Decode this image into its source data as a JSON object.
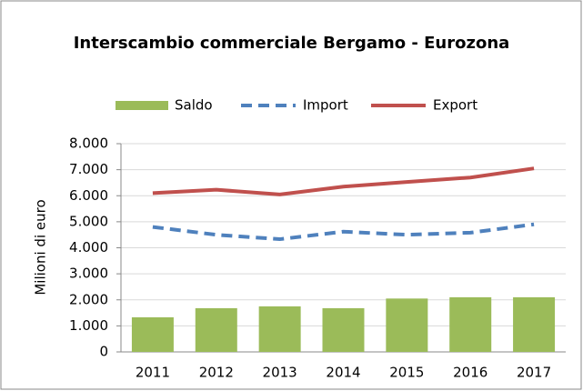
{
  "chart_data": {
    "type": "bar-line",
    "title": "Interscambio commerciale Bergamo - Eurozona",
    "y_axis_label": "Milioni di euro",
    "categories": [
      "2011",
      "2012",
      "2013",
      "2014",
      "2015",
      "2016",
      "2017"
    ],
    "series": [
      {
        "name": "Saldo",
        "type": "bar",
        "color": "#9bbb59",
        "values": [
          1330,
          1680,
          1750,
          1680,
          2050,
          2100,
          2100
        ]
      },
      {
        "name": "Import",
        "type": "line",
        "dashed": true,
        "color": "#4f81bd",
        "values": [
          4800,
          4500,
          4330,
          4620,
          4500,
          4580,
          4900
        ]
      },
      {
        "name": "Export",
        "type": "line",
        "dashed": false,
        "color": "#c0504d",
        "values": [
          6100,
          6230,
          6050,
          6350,
          6530,
          6700,
          7050
        ]
      }
    ],
    "ylim": [
      0,
      8000
    ],
    "yticks": [
      0,
      {
        "value": 1000,
        "label": "1.000"
      },
      {
        "value": 2000,
        "label": "2.000"
      },
      {
        "value": 3000,
        "label": "3.000"
      },
      {
        "value": 4000,
        "label": "4.000"
      },
      {
        "value": 5000,
        "label": "5.000"
      },
      {
        "value": 6000,
        "label": "6.000"
      },
      {
        "value": 7000,
        "label": "7.000"
      },
      {
        "value": 8000,
        "label": "8.000"
      }
    ],
    "grid": true,
    "legend": "top"
  }
}
